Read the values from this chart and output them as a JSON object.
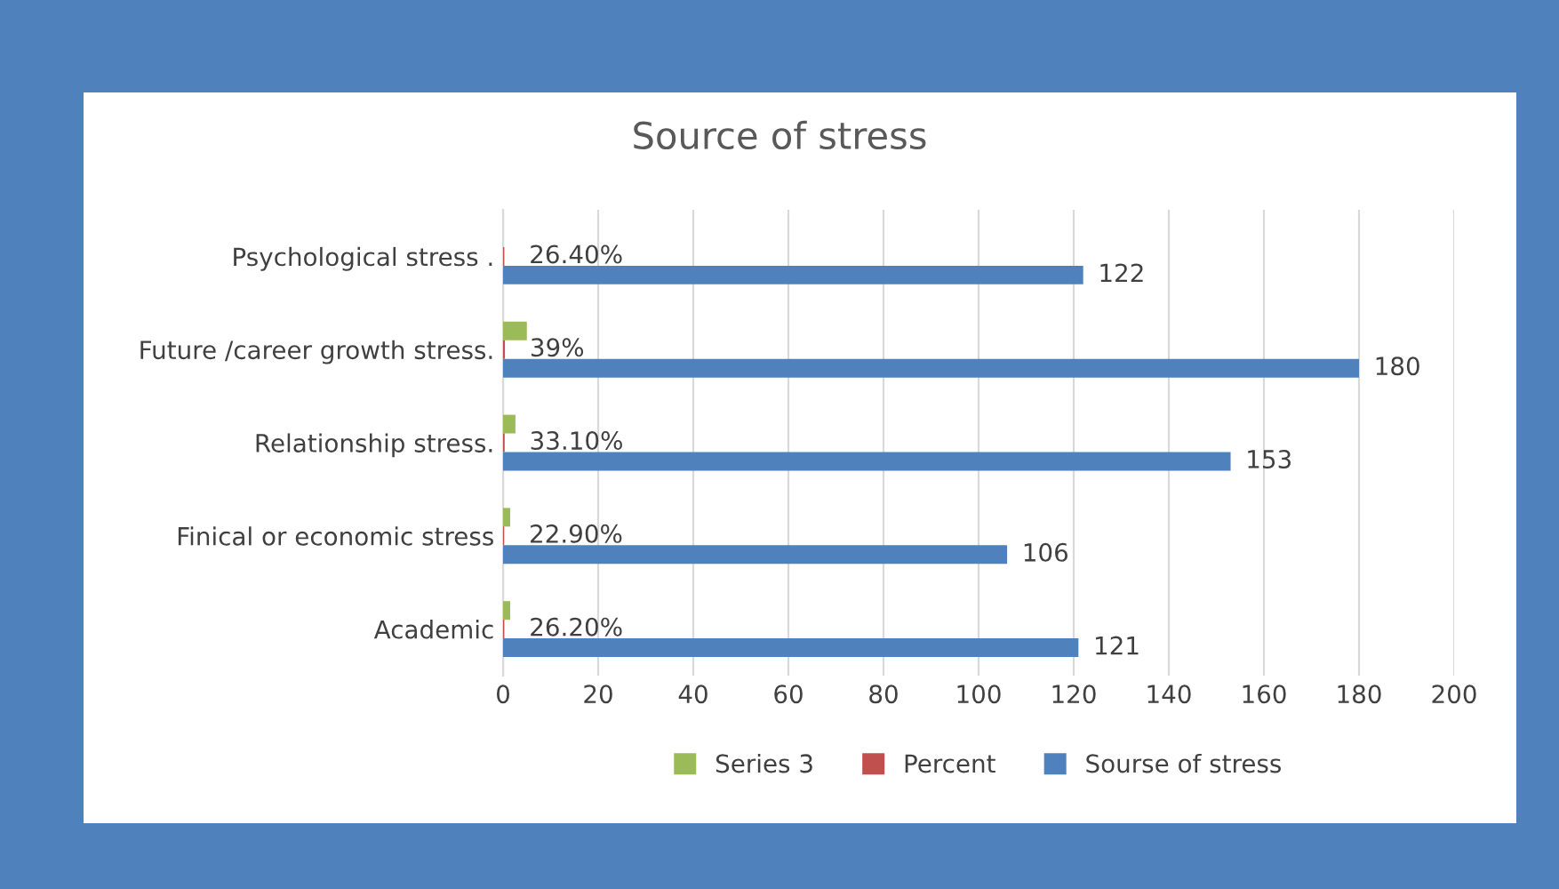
{
  "chart_data": {
    "type": "bar",
    "orientation": "horizontal",
    "title": "Source of stress",
    "categories": [
      "Psychological stress .",
      "Future /career growth stress.",
      "Relationship stress.",
      "Finical or economic stress",
      "Academic"
    ],
    "series": [
      {
        "name": "Series 3",
        "color": "#9bbb59",
        "values": [
          0,
          5,
          2.6,
          1.5,
          1.5
        ]
      },
      {
        "name": "Percent",
        "color": "#c0504d",
        "values": [
          0.264,
          0.39,
          0.331,
          0.229,
          0.262
        ],
        "value_labels": [
          "26.40%",
          "39%",
          "33.10%",
          "22.90%",
          "26.20%"
        ]
      },
      {
        "name": "Sourse of stress",
        "color": "#4f81bd",
        "values": [
          122,
          180,
          153,
          106,
          121
        ],
        "value_labels": [
          "122",
          "180",
          "153",
          "106",
          "121"
        ]
      }
    ],
    "xlim": [
      0,
      200
    ],
    "xticks": [
      0,
      20,
      40,
      60,
      80,
      100,
      120,
      140,
      160,
      180,
      200
    ],
    "grid": "x",
    "legend": "bottom"
  }
}
